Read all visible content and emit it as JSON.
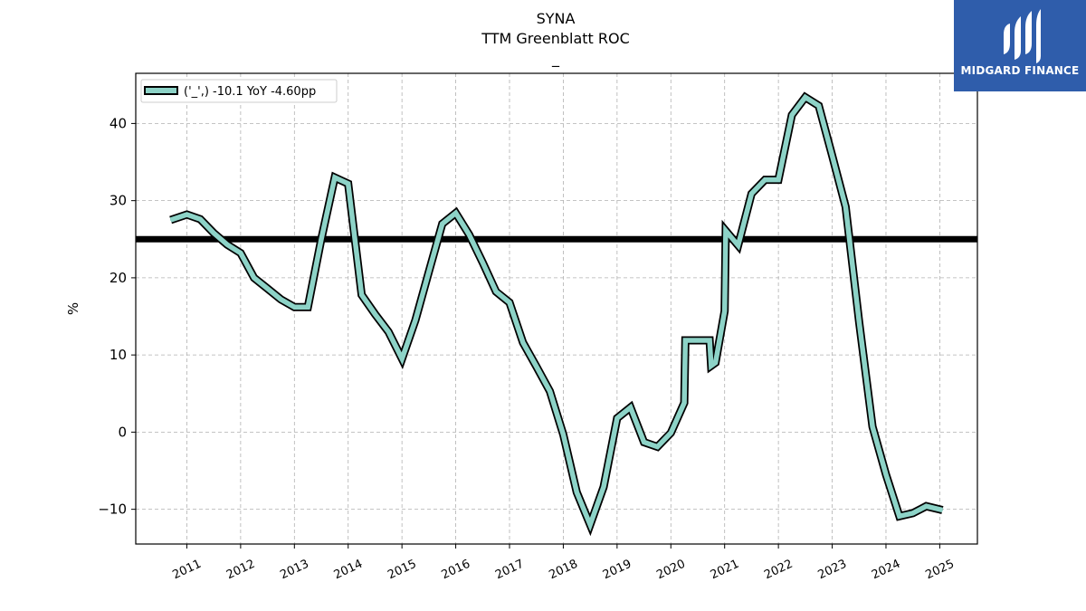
{
  "brand": {
    "name": "MIDGARD FINANCE",
    "color": "#2f5dab",
    "icon": "stylized-m-logo-icon"
  },
  "chart_data": {
    "type": "line",
    "title": "SYNA",
    "subtitle": "TTM Greenblatt ROC",
    "subtitle2": "_",
    "xlabel": "",
    "ylabel": "%",
    "xlim": [
      2010.05,
      2025.7
    ],
    "ylim": [
      -14.5,
      46.5
    ],
    "yticks": [
      -10,
      0,
      10,
      20,
      30,
      40
    ],
    "ytick_labels": [
      "−10",
      "0",
      "10",
      "20",
      "30",
      "40"
    ],
    "xticks": [
      2011,
      2012,
      2013,
      2014,
      2015,
      2016,
      2017,
      2018,
      2019,
      2020,
      2021,
      2022,
      2023,
      2024,
      2025
    ],
    "xtick_labels": [
      "2011",
      "2012",
      "2013",
      "2014",
      "2015",
      "2016",
      "2017",
      "2018",
      "2019",
      "2020",
      "2021",
      "2022",
      "2023",
      "2024",
      "2025"
    ],
    "grid": true,
    "legend_position": "top-left",
    "reference_line": {
      "value": 25,
      "color": "#000000"
    },
    "series": [
      {
        "name": "('_',) -10.1 YoY -4.60pp",
        "color": "#8dd3c7",
        "edge_color": "#000000",
        "x": [
          2010.7,
          2011.0,
          2011.25,
          2011.5,
          2011.75,
          2012.0,
          2012.25,
          2012.5,
          2012.75,
          2013.0,
          2013.25,
          2013.5,
          2013.75,
          2014.0,
          2014.25,
          2014.5,
          2014.75,
          2015.0,
          2015.25,
          2015.5,
          2015.75,
          2016.0,
          2016.25,
          2016.5,
          2016.75,
          2017.0,
          2017.25,
          2017.5,
          2017.75,
          2018.0,
          2018.25,
          2018.5,
          2018.75,
          2019.0,
          2019.25,
          2019.5,
          2019.75,
          2020.0,
          2020.25,
          2020.27,
          2020.5,
          2020.72,
          2020.75,
          2020.83,
          2021.0,
          2021.02,
          2021.25,
          2021.5,
          2021.75,
          2022.0,
          2022.25,
          2022.5,
          2022.75,
          2023.0,
          2023.25,
          2023.5,
          2023.75,
          2024.0,
          2024.25,
          2024.5,
          2024.75,
          2025.05
        ],
        "y": [
          27.5,
          28.2,
          27.6,
          25.8,
          24.3,
          23.2,
          20.0,
          18.6,
          17.2,
          16.2,
          16.2,
          25.0,
          33.0,
          32.2,
          17.8,
          15.3,
          13.0,
          9.5,
          14.5,
          20.8,
          27.0,
          28.4,
          25.6,
          22.0,
          18.2,
          16.8,
          11.6,
          8.5,
          5.3,
          -0.3,
          -7.8,
          -12.0,
          -7.1,
          1.8,
          3.2,
          -1.3,
          -1.9,
          -0.1,
          3.8,
          11.9,
          11.9,
          11.9,
          8.6,
          9.0,
          15.7,
          26.1,
          24.2,
          30.9,
          32.7,
          32.7,
          41.1,
          43.4,
          42.3,
          35.8,
          29.2,
          14.3,
          0.7,
          -5.5,
          -10.9,
          -10.5,
          -9.6,
          -10.1
        ]
      }
    ]
  }
}
